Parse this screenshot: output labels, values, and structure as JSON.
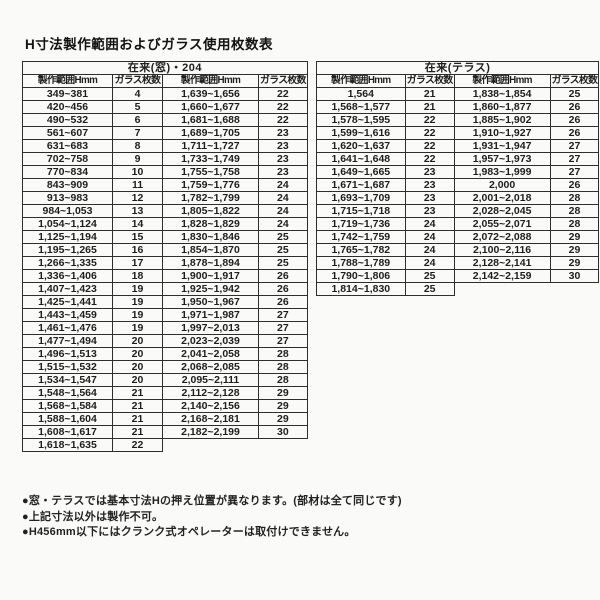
{
  "page": {
    "title": "H寸法製作範囲およびガラス使用枚数表"
  },
  "colors": {
    "background": "#fafaf8",
    "text": "#1e1e1e",
    "border": "#2e2e2e"
  },
  "tables": [
    {
      "title": "在来(窓)・204",
      "col_headers": [
        "製作範囲Hmm",
        "ガラス枚数",
        "製作範囲Hmm",
        "ガラス枚数"
      ],
      "rows": [
        [
          "349~381",
          "4",
          "1,639~1,656",
          "22"
        ],
        [
          "420~456",
          "5",
          "1,660~1,677",
          "22"
        ],
        [
          "490~532",
          "6",
          "1,681~1,688",
          "22"
        ],
        [
          "561~607",
          "7",
          "1,689~1,705",
          "23"
        ],
        [
          "631~683",
          "8",
          "1,711~1,727",
          "23"
        ],
        [
          "702~758",
          "9",
          "1,733~1,749",
          "23"
        ],
        [
          "770~834",
          "10",
          "1,755~1,758",
          "23"
        ],
        [
          "843~909",
          "11",
          "1,759~1,776",
          "24"
        ],
        [
          "913~983",
          "12",
          "1,782~1,799",
          "24"
        ],
        [
          "984~1,053",
          "13",
          "1,805~1,822",
          "24"
        ],
        [
          "1,054~1,124",
          "14",
          "1,828~1,829",
          "24"
        ],
        [
          "1,125~1,194",
          "15",
          "1,830~1,846",
          "25"
        ],
        [
          "1,195~1,265",
          "16",
          "1,854~1,870",
          "25"
        ],
        [
          "1,266~1,335",
          "17",
          "1,878~1,894",
          "25"
        ],
        [
          "1,336~1,406",
          "18",
          "1,900~1,917",
          "26"
        ],
        [
          "1,407~1,423",
          "19",
          "1,925~1,942",
          "26"
        ],
        [
          "1,425~1,441",
          "19",
          "1,950~1,967",
          "26"
        ],
        [
          "1,443~1,459",
          "19",
          "1,971~1,987",
          "27"
        ],
        [
          "1,461~1,476",
          "19",
          "1,997~2,013",
          "27"
        ],
        [
          "1,477~1,494",
          "20",
          "2,023~2,039",
          "27"
        ],
        [
          "1,496~1,513",
          "20",
          "2,041~2,058",
          "28"
        ],
        [
          "1,515~1,532",
          "20",
          "2,068~2,085",
          "28"
        ],
        [
          "1,534~1,547",
          "20",
          "2,095~2,111",
          "28"
        ],
        [
          "1,548~1,564",
          "21",
          "2,112~2,128",
          "29"
        ],
        [
          "1,568~1,584",
          "21",
          "2,140~2,156",
          "29"
        ],
        [
          "1,588~1,604",
          "21",
          "2,168~2,181",
          "29"
        ],
        [
          "1,608~1,617",
          "21",
          "2,182~2,199",
          "30"
        ],
        [
          "1,618~1,635",
          "22"
        ]
      ]
    },
    {
      "title": "在来(テラス)",
      "col_headers": [
        "製作範囲Hmm",
        "ガラス枚数",
        "製作範囲Hmm",
        "ガラス枚数"
      ],
      "rows": [
        [
          "1,564",
          "21",
          "1,838~1,854",
          "25"
        ],
        [
          "1,568~1,577",
          "21",
          "1,860~1,877",
          "26"
        ],
        [
          "1,578~1,595",
          "22",
          "1,885~1,902",
          "26"
        ],
        [
          "1,599~1,616",
          "22",
          "1,910~1,927",
          "26"
        ],
        [
          "1,620~1,637",
          "22",
          "1,931~1,947",
          "27"
        ],
        [
          "1,641~1,648",
          "22",
          "1,957~1,973",
          "27"
        ],
        [
          "1,649~1,665",
          "23",
          "1,983~1,999",
          "27"
        ],
        [
          "1,671~1,687",
          "23",
          "2,000",
          "26"
        ],
        [
          "1,693~1,709",
          "23",
          "2,001~2,018",
          "28"
        ],
        [
          "1,715~1,718",
          "23",
          "2,028~2,045",
          "28"
        ],
        [
          "1,719~1,736",
          "24",
          "2,055~2,071",
          "28"
        ],
        [
          "1,742~1,759",
          "24",
          "2,072~2,088",
          "29"
        ],
        [
          "1,765~1,782",
          "24",
          "2,100~2,116",
          "29"
        ],
        [
          "1,788~1,789",
          "24",
          "2,128~2,141",
          "29"
        ],
        [
          "1,790~1,806",
          "25",
          "2,142~2,159",
          "30"
        ],
        [
          "1,814~1,830",
          "25"
        ]
      ]
    }
  ],
  "notes": [
    "●窓・テラスでは基本寸法Hの押え位置が異なります。(部材は全て同じです)",
    "●上記寸法以外は製作不可。",
    "●H456mm以下にはクランク式オペレーターは取付けできません。"
  ]
}
